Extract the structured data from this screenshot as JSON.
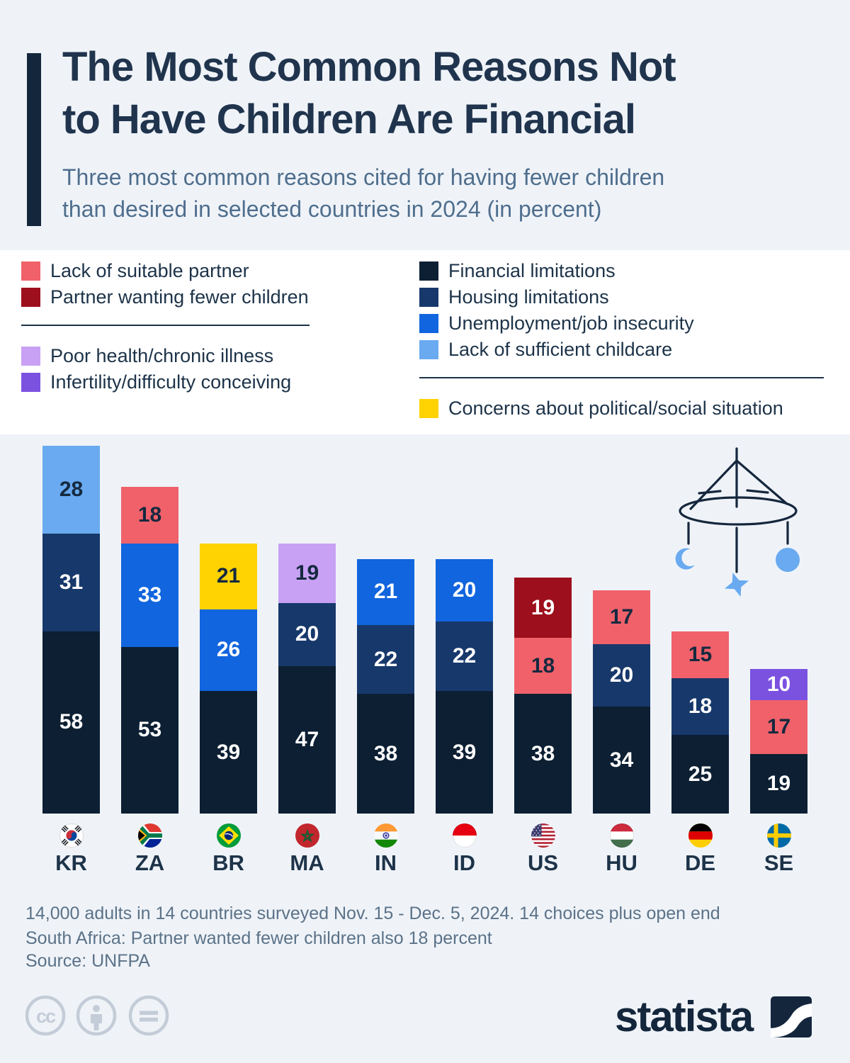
{
  "header": {
    "title_line1": "The Most Common Reasons Not",
    "title_line2": "to Have Children Are Financial",
    "subtitle_line1": "Three most common reasons cited for having fewer children",
    "subtitle_line2": "than desired in selected countries in 2024 (in percent)"
  },
  "colors": {
    "navy": "#0c1f33",
    "darkblue": "#17386b",
    "brightblue": "#1165de",
    "lightblue": "#69aaf0",
    "yellow": "#ffd202",
    "salmon": "#f0616a",
    "darkred": "#9d0f1c",
    "lightpurple": "#c9a1f4",
    "purple": "#7b52e0",
    "accent_dark": "#13263c",
    "label_on_dark": "#ffffff",
    "label_on_light": "#15293f"
  },
  "legend": {
    "left_groups": [
      {
        "items": [
          {
            "label": "Lack of suitable partner",
            "color": "salmon"
          },
          {
            "label": "Partner wanting fewer children",
            "color": "darkred"
          }
        ]
      },
      {
        "items": [
          {
            "label": "Poor health/chronic illness",
            "color": "lightpurple"
          },
          {
            "label": "Infertility/difficulty conceiving",
            "color": "purple"
          }
        ]
      }
    ],
    "right_groups": [
      {
        "items": [
          {
            "label": "Financial limitations",
            "color": "navy"
          },
          {
            "label": "Housing limitations",
            "color": "darkblue"
          },
          {
            "label": "Unemployment/job insecurity",
            "color": "brightblue"
          },
          {
            "label": "Lack of sufficient childcare",
            "color": "lightblue"
          }
        ]
      },
      {
        "items": [
          {
            "label": "Concerns about political/social situation",
            "color": "yellow"
          }
        ]
      }
    ]
  },
  "chart_data": {
    "type": "bar",
    "stacked": true,
    "unit": "percent",
    "categories": [
      "KR",
      "ZA",
      "BR",
      "MA",
      "IN",
      "ID",
      "US",
      "HU",
      "DE",
      "SE"
    ],
    "bars": [
      {
        "country": "KR",
        "segments": [
          {
            "reason": "Financial limitations",
            "value": 58,
            "color": "navy"
          },
          {
            "reason": "Housing limitations",
            "value": 31,
            "color": "darkblue"
          },
          {
            "reason": "Lack of sufficient childcare",
            "value": 28,
            "color": "lightblue"
          }
        ]
      },
      {
        "country": "ZA",
        "segments": [
          {
            "reason": "Financial limitations",
            "value": 53,
            "color": "navy"
          },
          {
            "reason": "Unemployment/job insecurity",
            "value": 33,
            "color": "brightblue"
          },
          {
            "reason": "Lack of suitable partner",
            "value": 18,
            "color": "salmon"
          }
        ]
      },
      {
        "country": "BR",
        "segments": [
          {
            "reason": "Financial limitations",
            "value": 39,
            "color": "navy"
          },
          {
            "reason": "Unemployment/job insecurity",
            "value": 26,
            "color": "brightblue"
          },
          {
            "reason": "Concerns about political/social situation",
            "value": 21,
            "color": "yellow"
          }
        ]
      },
      {
        "country": "MA",
        "segments": [
          {
            "reason": "Financial limitations",
            "value": 47,
            "color": "navy"
          },
          {
            "reason": "Housing limitations",
            "value": 20,
            "color": "darkblue"
          },
          {
            "reason": "Poor health/chronic illness",
            "value": 19,
            "color": "lightpurple"
          }
        ]
      },
      {
        "country": "IN",
        "segments": [
          {
            "reason": "Financial limitations",
            "value": 38,
            "color": "navy"
          },
          {
            "reason": "Housing limitations",
            "value": 22,
            "color": "darkblue"
          },
          {
            "reason": "Unemployment/job insecurity",
            "value": 21,
            "color": "brightblue"
          }
        ]
      },
      {
        "country": "ID",
        "segments": [
          {
            "reason": "Financial limitations",
            "value": 39,
            "color": "navy"
          },
          {
            "reason": "Housing limitations",
            "value": 22,
            "color": "darkblue"
          },
          {
            "reason": "Unemployment/job insecurity",
            "value": 20,
            "color": "brightblue"
          }
        ]
      },
      {
        "country": "US",
        "segments": [
          {
            "reason": "Financial limitations",
            "value": 38,
            "color": "navy"
          },
          {
            "reason": "Lack of suitable partner",
            "value": 18,
            "color": "salmon"
          },
          {
            "reason": "Partner wanting fewer children",
            "value": 19,
            "color": "darkred"
          }
        ]
      },
      {
        "country": "HU",
        "segments": [
          {
            "reason": "Financial limitations",
            "value": 34,
            "color": "navy"
          },
          {
            "reason": "Housing limitations",
            "value": 20,
            "color": "darkblue"
          },
          {
            "reason": "Lack of suitable partner",
            "value": 17,
            "color": "salmon"
          }
        ]
      },
      {
        "country": "DE",
        "segments": [
          {
            "reason": "Financial limitations",
            "value": 25,
            "color": "navy"
          },
          {
            "reason": "Housing limitations",
            "value": 18,
            "color": "darkblue"
          },
          {
            "reason": "Lack of suitable partner",
            "value": 15,
            "color": "salmon"
          }
        ]
      },
      {
        "country": "SE",
        "segments": [
          {
            "reason": "Financial limitations",
            "value": 19,
            "color": "navy"
          },
          {
            "reason": "Lack of suitable partner",
            "value": 17,
            "color": "salmon"
          },
          {
            "reason": "Infertility/difficulty conceiving",
            "value": 10,
            "color": "purple"
          }
        ]
      }
    ]
  },
  "footer": {
    "note_line1": "14,000 adults in 14 countries surveyed Nov. 15 - Dec. 5, 2024. 14 choices plus open end",
    "note_line2": "South Africa: Partner wanted fewer children also 18 percent",
    "source": "Source: UNFPA"
  },
  "branding": {
    "logo_text": "statista"
  }
}
